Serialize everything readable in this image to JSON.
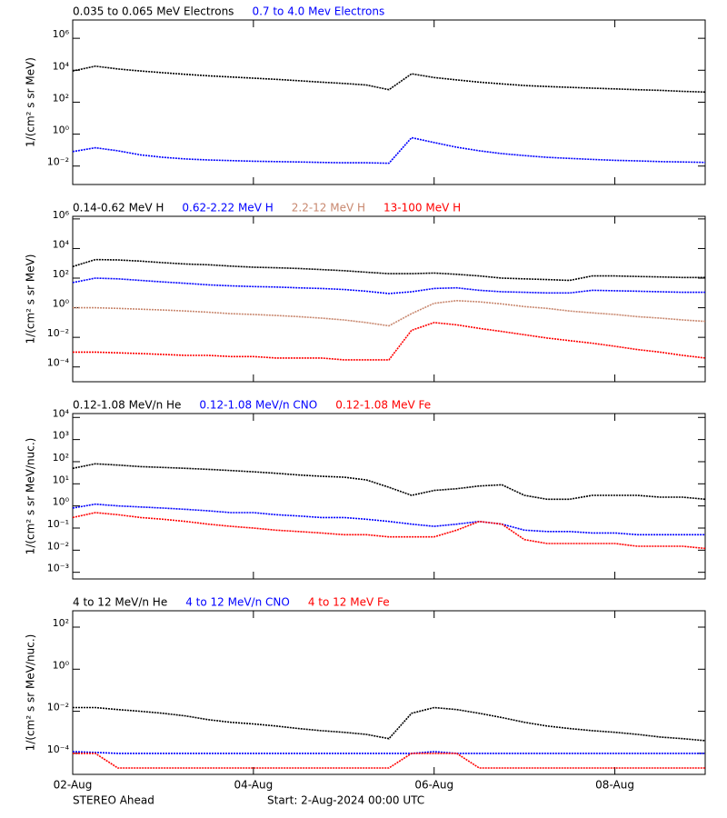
{
  "chart_data": [
    {
      "type": "line",
      "ylabel": "1/(cm² s sr MeV)",
      "log_y": true,
      "ylim": [
        0.0007,
        14000000
      ],
      "yticks": [
        {
          "value": 0.01,
          "label": "10⁻²"
        },
        {
          "value": 1,
          "label": "10⁰"
        },
        {
          "value": 100,
          "label": "10²"
        },
        {
          "value": 10000,
          "label": "10⁴"
        },
        {
          "value": 1000000,
          "label": "10⁶"
        }
      ],
      "xlim": [
        0,
        7
      ],
      "x": [
        0,
        0.25,
        0.5,
        0.75,
        1,
        1.25,
        1.5,
        1.75,
        2,
        2.25,
        2.5,
        2.75,
        3,
        3.25,
        3.5,
        3.75,
        4,
        4.25,
        4.5,
        4.75,
        5,
        5.25,
        5.5,
        5.75,
        6,
        6.25,
        6.5,
        6.75,
        7
      ],
      "series": [
        {
          "name": "0.035 to 0.065 MeV Electrons",
          "color": "#000000",
          "values": [
            9000,
            18000,
            12000,
            9000,
            7000,
            5500,
            4500,
            3800,
            3200,
            2700,
            2200,
            1800,
            1500,
            1200,
            600,
            6000,
            3500,
            2500,
            1800,
            1400,
            1100,
            950,
            850,
            750,
            680,
            600,
            550,
            480,
            430
          ]
        },
        {
          "name": "0.7 to 4.0 Mev Electrons",
          "color": "#0000ff",
          "values": [
            0.08,
            0.14,
            0.09,
            0.05,
            0.035,
            0.028,
            0.024,
            0.022,
            0.02,
            0.019,
            0.018,
            0.017,
            0.016,
            0.016,
            0.015,
            0.6,
            0.3,
            0.15,
            0.09,
            0.06,
            0.045,
            0.035,
            0.03,
            0.026,
            0.023,
            0.021,
            0.019,
            0.018,
            0.017
          ]
        }
      ]
    },
    {
      "type": "line",
      "ylabel": "1/(cm² s sr MeV)",
      "log_y": true,
      "ylim": [
        1e-05,
        1500000
      ],
      "yticks": [
        {
          "value": 0.0001,
          "label": "10⁻⁴"
        },
        {
          "value": 0.01,
          "label": "10⁻²"
        },
        {
          "value": 1,
          "label": "10⁰"
        },
        {
          "value": 100,
          "label": "10²"
        },
        {
          "value": 10000,
          "label": "10⁴"
        },
        {
          "value": 1000000,
          "label": "10⁶"
        }
      ],
      "xlim": [
        0,
        7
      ],
      "x": [
        0,
        0.25,
        0.5,
        0.75,
        1,
        1.25,
        1.5,
        1.75,
        2,
        2.25,
        2.5,
        2.75,
        3,
        3.25,
        3.5,
        3.75,
        4,
        4.25,
        4.5,
        4.75,
        5,
        5.25,
        5.5,
        5.75,
        6,
        6.25,
        6.5,
        6.75,
        7
      ],
      "series": [
        {
          "name": "0.14-0.62 MeV H",
          "color": "#000000",
          "values": [
            600,
            1800,
            1700,
            1400,
            1100,
            900,
            800,
            650,
            550,
            500,
            450,
            380,
            320,
            250,
            200,
            200,
            220,
            180,
            140,
            100,
            90,
            80,
            70,
            140,
            140,
            130,
            120,
            110,
            110
          ]
        },
        {
          "name": "0.62-2.22 MeV H",
          "color": "#0000ff",
          "values": [
            50,
            100,
            90,
            70,
            55,
            45,
            35,
            30,
            27,
            25,
            22,
            20,
            17,
            13,
            9,
            12,
            20,
            22,
            15,
            12,
            11,
            10,
            10,
            15,
            14,
            13,
            12,
            11,
            11
          ]
        },
        {
          "name": "2.2-12 MeV H",
          "color": "#c8876e",
          "values": [
            1,
            1,
            0.9,
            0.8,
            0.7,
            0.6,
            0.5,
            0.4,
            0.35,
            0.3,
            0.25,
            0.2,
            0.15,
            0.1,
            0.06,
            0.4,
            2,
            3,
            2.5,
            1.8,
            1.2,
            0.9,
            0.6,
            0.45,
            0.35,
            0.25,
            0.2,
            0.15,
            0.12
          ]
        },
        {
          "name": "13-100 MeV H",
          "color": "#ff0000",
          "values": [
            0.001,
            0.001,
            0.0009,
            0.0008,
            0.0007,
            0.0006,
            0.0006,
            0.0005,
            0.0005,
            0.0004,
            0.0004,
            0.0004,
            0.0003,
            0.0003,
            0.0003,
            0.03,
            0.1,
            0.07,
            0.04,
            0.025,
            0.015,
            0.009,
            0.006,
            0.004,
            0.0025,
            0.0015,
            0.001,
            0.0006,
            0.0004
          ]
        }
      ]
    },
    {
      "type": "line",
      "ylabel": "1/(cm² s sr MeV/nuc.)",
      "log_y": true,
      "ylim": [
        0.0005,
        15000
      ],
      "yticks": [
        {
          "value": 0.001,
          "label": "10⁻³"
        },
        {
          "value": 0.01,
          "label": "10⁻²"
        },
        {
          "value": 0.1,
          "label": "10⁻¹"
        },
        {
          "value": 1,
          "label": "10⁰"
        },
        {
          "value": 10,
          "label": "10¹"
        },
        {
          "value": 100,
          "label": "10²"
        },
        {
          "value": 1000,
          "label": "10³"
        },
        {
          "value": 10000,
          "label": "10⁴"
        }
      ],
      "xlim": [
        0,
        7
      ],
      "x": [
        0,
        0.25,
        0.5,
        0.75,
        1,
        1.25,
        1.5,
        1.75,
        2,
        2.25,
        2.5,
        2.75,
        3,
        3.25,
        3.5,
        3.75,
        4,
        4.25,
        4.5,
        4.75,
        5,
        5.25,
        5.5,
        5.75,
        6,
        6.25,
        6.5,
        6.75,
        7
      ],
      "series": [
        {
          "name": "0.12-1.08 MeV/n He",
          "color": "#000000",
          "values": [
            50,
            80,
            70,
            60,
            55,
            50,
            45,
            40,
            35,
            30,
            25,
            22,
            20,
            15,
            7,
            3,
            5,
            6,
            8,
            9,
            3,
            2,
            2,
            3,
            3,
            3,
            2.5,
            2.5,
            2
          ]
        },
        {
          "name": "0.12-1.08 MeV/n CNO",
          "color": "#0000ff",
          "values": [
            0.8,
            1.2,
            1,
            0.9,
            0.8,
            0.7,
            0.6,
            0.5,
            0.5,
            0.4,
            0.35,
            0.3,
            0.3,
            0.25,
            0.2,
            0.15,
            0.12,
            0.15,
            0.2,
            0.15,
            0.08,
            0.07,
            0.07,
            0.06,
            0.06,
            0.05,
            0.05,
            0.05,
            0.05
          ]
        },
        {
          "name": "0.12-1.08 MeV Fe",
          "color": "#ff0000",
          "values": [
            0.3,
            0.5,
            0.4,
            0.3,
            0.25,
            0.2,
            0.15,
            0.12,
            0.1,
            0.08,
            0.07,
            0.06,
            0.05,
            0.05,
            0.04,
            0.04,
            0.04,
            0.08,
            0.2,
            0.15,
            0.03,
            0.02,
            0.02,
            0.02,
            0.02,
            0.015,
            0.015,
            0.015,
            0.012
          ]
        }
      ]
    },
    {
      "type": "line",
      "ylabel": "1/(cm² s sr MeV/nuc.)",
      "log_y": true,
      "ylim": [
        1e-05,
        600
      ],
      "yticks": [
        {
          "value": 0.0001,
          "label": "10⁻⁴"
        },
        {
          "value": 0.01,
          "label": "10⁻²"
        },
        {
          "value": 1,
          "label": "10⁰"
        },
        {
          "value": 100,
          "label": "10²"
        }
      ],
      "xlim": [
        0,
        7
      ],
      "xticks": [
        {
          "value": 0,
          "label": "02-Aug"
        },
        {
          "value": 2,
          "label": "04-Aug"
        },
        {
          "value": 4,
          "label": "06-Aug"
        },
        {
          "value": 6,
          "label": "08-Aug"
        }
      ],
      "x": [
        0,
        0.25,
        0.5,
        0.75,
        1,
        1.25,
        1.5,
        1.75,
        2,
        2.25,
        2.5,
        2.75,
        3,
        3.25,
        3.5,
        3.75,
        4,
        4.25,
        4.5,
        4.75,
        5,
        5.25,
        5.5,
        5.75,
        6,
        6.25,
        6.5,
        6.75,
        7
      ],
      "series": [
        {
          "name": "4 to 12 MeV/n He",
          "color": "#000000",
          "values": [
            0.015,
            0.015,
            0.012,
            0.01,
            0.008,
            0.006,
            0.004,
            0.003,
            0.0025,
            0.002,
            0.0015,
            0.0012,
            0.001,
            0.0008,
            0.0005,
            0.008,
            0.015,
            0.012,
            0.008,
            0.005,
            0.003,
            0.002,
            0.0015,
            0.0012,
            0.001,
            0.0008,
            0.0006,
            0.0005,
            0.0004
          ]
        },
        {
          "name": "4 to 12 MeV/n CNO",
          "color": "#0000ff",
          "values": [
            0.00012,
            0.00011,
            0.0001,
            0.0001,
            0.0001,
            0.0001,
            0.0001,
            0.0001,
            0.0001,
            0.0001,
            0.0001,
            0.0001,
            0.0001,
            0.0001,
            0.0001,
            0.0001,
            0.00012,
            0.0001,
            0.0001,
            0.0001,
            0.0001,
            0.0001,
            0.0001,
            0.0001,
            0.0001,
            0.0001,
            0.0001,
            0.0001,
            0.0001
          ]
        },
        {
          "name": "4 to 12 MeV Fe",
          "color": "#ff0000",
          "values": [
            0.0001,
            0.0001,
            2e-05,
            2e-05,
            2e-05,
            2e-05,
            2e-05,
            2e-05,
            2e-05,
            2e-05,
            2e-05,
            2e-05,
            2e-05,
            2e-05,
            2e-05,
            0.0001,
            0.0001,
            0.0001,
            2e-05,
            2e-05,
            2e-05,
            2e-05,
            2e-05,
            2e-05,
            2e-05,
            2e-05,
            2e-05,
            2e-05,
            2e-05
          ]
        }
      ]
    }
  ],
  "footer": {
    "observatory": "STEREO Ahead",
    "start": "Start:  2-Aug-2024 00:00 UTC"
  }
}
